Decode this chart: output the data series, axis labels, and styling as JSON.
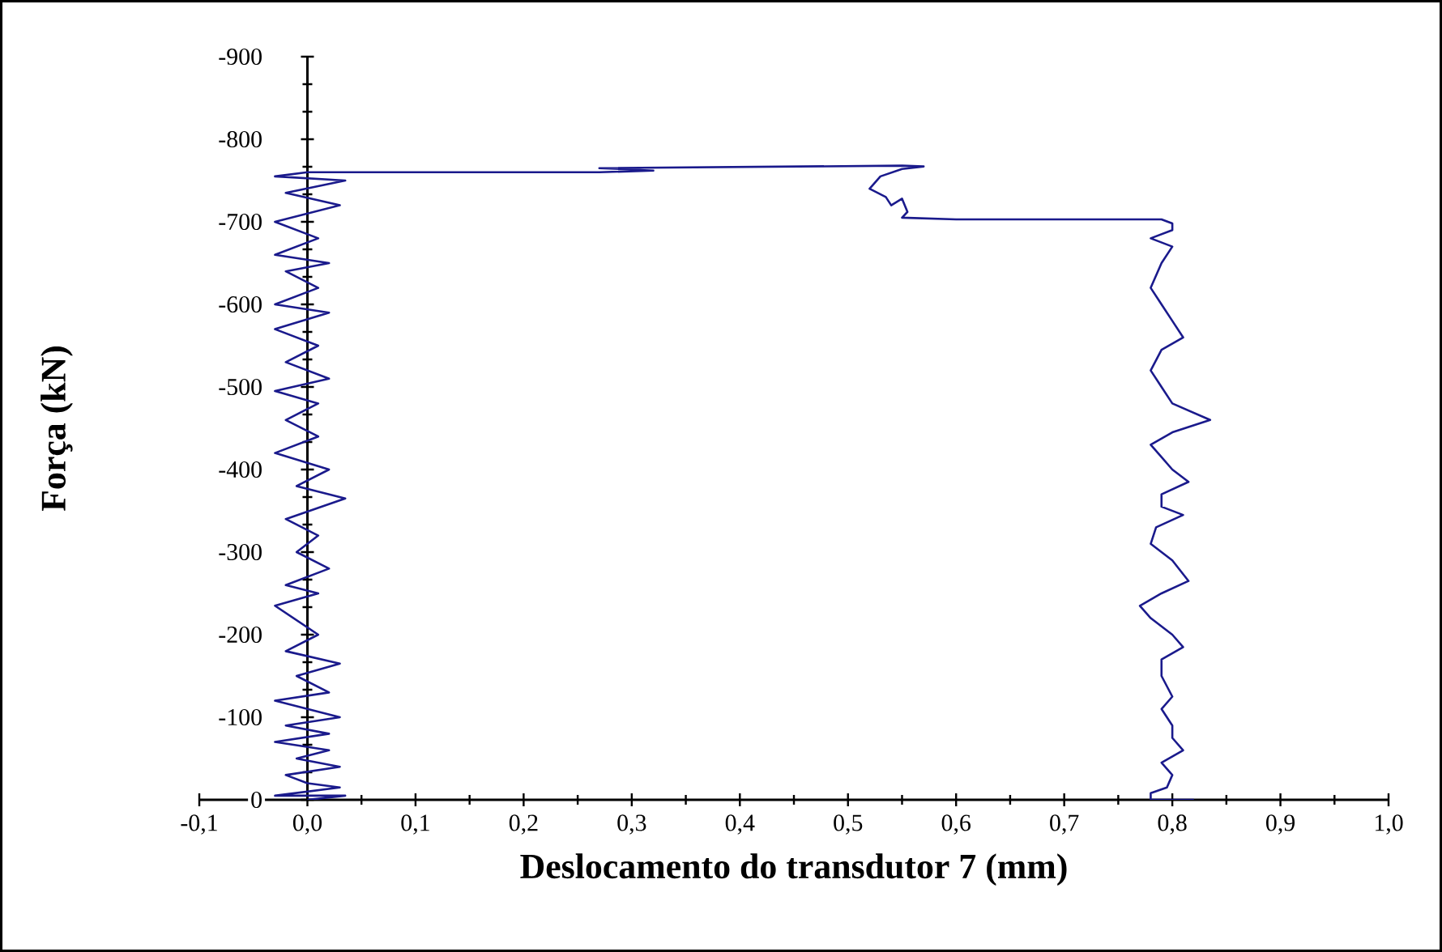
{
  "chart_data": {
    "type": "line",
    "xlabel": "Deslocamento do transdutor 7 (mm)",
    "ylabel": "Força (kN)",
    "xlim": [
      -0.1,
      1.0
    ],
    "ylim": [
      0,
      -900
    ],
    "xticks": [
      {
        "value": -0.1,
        "label": "-0,1"
      },
      {
        "value": 0.0,
        "label": "0,0"
      },
      {
        "value": 0.1,
        "label": "0,1"
      },
      {
        "value": 0.2,
        "label": "0,2"
      },
      {
        "value": 0.3,
        "label": "0,3"
      },
      {
        "value": 0.4,
        "label": "0,4"
      },
      {
        "value": 0.5,
        "label": "0,5"
      },
      {
        "value": 0.6,
        "label": "0,6"
      },
      {
        "value": 0.7,
        "label": "0,7"
      },
      {
        "value": 0.8,
        "label": "0,8"
      },
      {
        "value": 0.9,
        "label": "0,9"
      },
      {
        "value": 1.0,
        "label": "1,0"
      }
    ],
    "yticks": [
      0,
      -100,
      -200,
      -300,
      -400,
      -500,
      -600,
      -700,
      -800,
      -900
    ],
    "grid": false,
    "marker": "none",
    "line_style": "solid",
    "series": [
      {
        "color": "#1a1a8c",
        "x": [
          0,
          0.035,
          -0.03,
          0.03,
          0,
          -0.02,
          0.03,
          -0.01,
          0.02,
          -0.03,
          0.02,
          -0.02,
          0.03,
          -0.03,
          0.02,
          -0.01,
          0.03,
          -0.02,
          0.01,
          -0.03,
          0.01,
          -0.02,
          0.02,
          -0.01,
          0.01,
          -0.02,
          0.035,
          -0.01,
          0.02,
          -0.03,
          0.01,
          -0.02,
          0.01,
          -0.03,
          0.02,
          -0.02,
          0.01,
          -0.03,
          0.02,
          -0.03,
          0.01,
          -0.02,
          0.02,
          -0.03,
          0.01,
          -0.03,
          0.03,
          -0.02,
          0.035,
          -0.03,
          0.0,
          0.27,
          0.32,
          0.27,
          0.55,
          0.57,
          0.55,
          0.53,
          0.52,
          0.535,
          0.54,
          0.55,
          0.555,
          0.55,
          0.6,
          0.79,
          0.8,
          0.8,
          0.78,
          0.8,
          0.79,
          0.78,
          0.79,
          0.8,
          0.81,
          0.79,
          0.78,
          0.79,
          0.8,
          0.835,
          0.8,
          0.78,
          0.79,
          0.8,
          0.815,
          0.79,
          0.79,
          0.81,
          0.785,
          0.78,
          0.8,
          0.815,
          0.79,
          0.77,
          0.78,
          0.8,
          0.81,
          0.79,
          0.79,
          0.8,
          0.79,
          0.8,
          0.8,
          0.81,
          0.79,
          0.8,
          0.795,
          0.78,
          0.78,
          0.82
        ],
        "values": [
          0,
          -5,
          -5,
          -15,
          -20,
          -30,
          -40,
          -50,
          -60,
          -70,
          -80,
          -90,
          -100,
          -120,
          -130,
          -150,
          -165,
          -180,
          -200,
          -235,
          -250,
          -260,
          -280,
          -300,
          -320,
          -340,
          -365,
          -380,
          -400,
          -420,
          -440,
          -460,
          -480,
          -495,
          -510,
          -530,
          -550,
          -570,
          -590,
          -600,
          -620,
          -640,
          -650,
          -660,
          -680,
          -700,
          -720,
          -735,
          -750,
          -755,
          -760,
          -760,
          -762,
          -765,
          -768,
          -767,
          -764,
          -755,
          -740,
          -730,
          -720,
          -728,
          -712,
          -705,
          -703,
          -703,
          -698,
          -690,
          -680,
          -670,
          -650,
          -620,
          -600,
          -580,
          -560,
          -545,
          -520,
          -500,
          -480,
          -460,
          -445,
          -430,
          -415,
          -400,
          -385,
          -370,
          -355,
          -345,
          -330,
          -310,
          -290,
          -265,
          -250,
          -235,
          -220,
          -200,
          -185,
          -170,
          -150,
          -125,
          -110,
          -90,
          -75,
          -60,
          -45,
          -30,
          -15,
          -8,
          0,
          0
        ]
      }
    ]
  }
}
